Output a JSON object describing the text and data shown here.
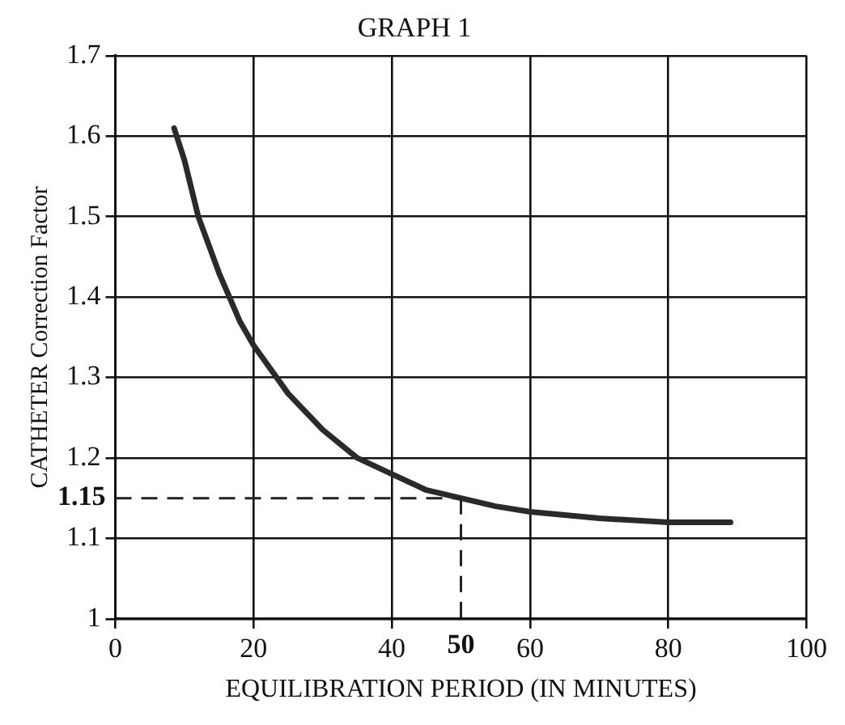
{
  "chart_data": {
    "type": "line",
    "title": "GRAPH 1",
    "xlabel": "EQUILIBRATION PERIOD (IN MINUTES)",
    "ylabel": "CATHETER Correction Factor",
    "x": [
      8.5,
      10,
      12,
      15,
      18,
      20,
      25,
      30,
      35,
      40,
      45,
      50,
      55,
      60,
      70,
      80,
      89
    ],
    "series": [
      {
        "color": "#2a2a2a",
        "values": [
          1.61,
          1.57,
          1.5,
          1.43,
          1.37,
          1.34,
          1.28,
          1.235,
          1.2,
          1.18,
          1.16,
          1.15,
          1.14,
          1.133,
          1.125,
          1.12,
          1.12
        ]
      }
    ],
    "xlim": [
      0,
      100
    ],
    "xticks": [
      0,
      20,
      40,
      60,
      80,
      100
    ],
    "ylim": [
      1,
      1.7
    ],
    "yticks": [
      1,
      1.1,
      1.2,
      1.3,
      1.4,
      1.5,
      1.6,
      1.7
    ],
    "ref_lines": [
      {
        "axis": "y",
        "value": 1.15,
        "label": "1.15",
        "line_style": "dashed"
      },
      {
        "axis": "x",
        "value": 50,
        "label": "50",
        "line_style": "dashed"
      }
    ],
    "grid": true,
    "legend": false,
    "marker": "none",
    "line_style": "solid"
  }
}
